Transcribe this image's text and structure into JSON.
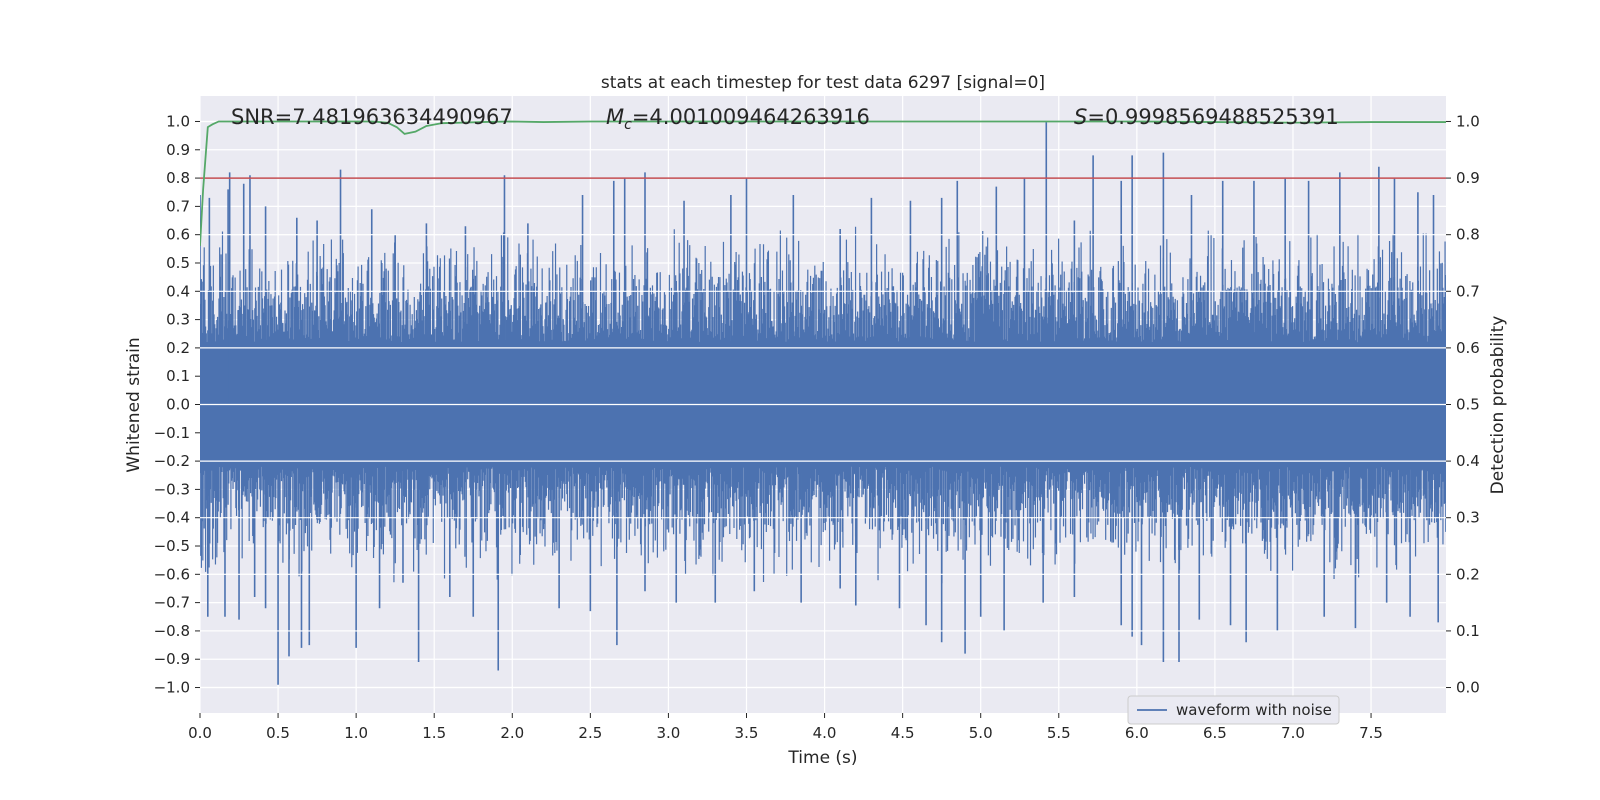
{
  "chart_data": {
    "type": "line",
    "title": "stats at each timestep for test data 6297 [signal=0]",
    "xlabel": "Time (s)",
    "ylabel_left": "Whitened strain",
    "ylabel_right": "Detection probability",
    "xlim": [
      0,
      7.98
    ],
    "ylim_left": [
      -1.09,
      1.09
    ],
    "ylim_right": [
      -0.045,
      1.045
    ],
    "x_ticks": [
      "0.0",
      "0.5",
      "1.0",
      "1.5",
      "2.0",
      "2.5",
      "3.0",
      "3.5",
      "4.0",
      "4.5",
      "5.0",
      "5.5",
      "6.0",
      "6.5",
      "7.0",
      "7.5"
    ],
    "y_left_ticks": [
      "1.0",
      "0.9",
      "0.8",
      "0.7",
      "0.6",
      "0.5",
      "0.4",
      "0.3",
      "0.2",
      "0.1",
      "0.0",
      "−0.1",
      "−0.2",
      "−0.3",
      "−0.4",
      "−0.5",
      "−0.6",
      "−0.7",
      "−0.8",
      "−0.9",
      "−1.0"
    ],
    "y_right_ticks": [
      "1.0",
      "0.9",
      "0.8",
      "0.7",
      "0.6",
      "0.5",
      "0.4",
      "0.3",
      "0.2",
      "0.1",
      "0.0"
    ],
    "grid": true,
    "legend_position": "lower-right",
    "stats": {
      "snr_text": "SNR=7.481963634490967",
      "mc_symbol": "M",
      "mc_subscript": "c",
      "mc_value": "=4.001009464263916",
      "s_symbol": "S",
      "s_value": "=0.9998569488525391"
    },
    "threshold": {
      "value": 0.9,
      "axis": "right",
      "color": "#c44e52"
    },
    "detection_probability": {
      "color": "#55a868",
      "x": [
        0,
        0.02,
        0.05,
        0.08,
        0.12,
        0.2,
        0.4,
        0.8,
        1.0,
        1.1,
        1.2,
        1.26,
        1.31,
        1.38,
        1.45,
        1.55,
        1.8,
        2.0,
        2.2,
        2.5,
        3.0,
        3.5,
        4.0,
        5.0,
        6.0,
        6.5,
        7.0,
        7.5,
        7.98
      ],
      "y": [
        0.78,
        0.88,
        0.99,
        0.995,
        1.0,
        1.0,
        1.0,
        1.0,
        1.0,
        1.0,
        0.998,
        0.99,
        0.978,
        0.982,
        0.992,
        0.997,
        0.999,
        1.0,
        0.999,
        1.0,
        1.0,
        1.0,
        1.0,
        1.0,
        1.0,
        0.999,
        0.998,
        0.999,
        0.999
      ]
    },
    "waveform": {
      "name": "waveform with noise",
      "color": "#4c72b0",
      "core_amplitude": 0.2,
      "peaks_positive": [
        [
          0.0,
          0.74
        ],
        [
          0.06,
          0.73
        ],
        [
          0.18,
          0.76
        ],
        [
          0.19,
          0.82
        ],
        [
          0.28,
          0.78
        ],
        [
          0.32,
          0.81
        ],
        [
          0.42,
          0.7
        ],
        [
          0.62,
          0.66
        ],
        [
          0.75,
          0.65
        ],
        [
          0.9,
          0.83
        ],
        [
          1.1,
          0.69
        ],
        [
          1.25,
          0.6
        ],
        [
          1.45,
          0.64
        ],
        [
          1.7,
          0.63
        ],
        [
          1.95,
          0.81
        ],
        [
          2.1,
          0.64
        ],
        [
          2.45,
          0.74
        ],
        [
          2.65,
          0.79
        ],
        [
          2.72,
          0.8
        ],
        [
          2.85,
          0.82
        ],
        [
          3.1,
          0.72
        ],
        [
          3.4,
          0.74
        ],
        [
          3.5,
          0.8
        ],
        [
          3.8,
          0.74
        ],
        [
          4.1,
          0.62
        ],
        [
          4.3,
          0.73
        ],
        [
          4.55,
          0.72
        ],
        [
          4.75,
          0.73
        ],
        [
          4.85,
          0.79
        ],
        [
          5.1,
          0.77
        ],
        [
          5.28,
          0.8
        ],
        [
          5.42,
          1.0
        ],
        [
          5.6,
          0.65
        ],
        [
          5.72,
          0.88
        ],
        [
          5.9,
          0.79
        ],
        [
          5.97,
          0.88
        ],
        [
          6.17,
          0.89
        ],
        [
          6.35,
          0.74
        ],
        [
          6.55,
          0.79
        ],
        [
          6.75,
          0.79
        ],
        [
          6.95,
          0.8
        ],
        [
          7.1,
          0.79
        ],
        [
          7.3,
          0.82
        ],
        [
          7.55,
          0.84
        ],
        [
          7.65,
          0.8
        ],
        [
          7.8,
          0.75
        ],
        [
          7.9,
          0.74
        ]
      ],
      "peaks_negative": [
        [
          0.05,
          -0.75
        ],
        [
          0.16,
          -0.75
        ],
        [
          0.25,
          -0.76
        ],
        [
          0.35,
          -0.68
        ],
        [
          0.42,
          -0.72
        ],
        [
          0.5,
          -0.99
        ],
        [
          0.57,
          -0.89
        ],
        [
          0.65,
          -0.86
        ],
        [
          0.7,
          -0.85
        ],
        [
          1.0,
          -0.86
        ],
        [
          1.15,
          -0.72
        ],
        [
          1.3,
          -0.63
        ],
        [
          1.4,
          -0.91
        ],
        [
          1.6,
          -0.68
        ],
        [
          1.75,
          -0.75
        ],
        [
          1.91,
          -0.94
        ],
        [
          2.3,
          -0.72
        ],
        [
          2.5,
          -0.73
        ],
        [
          2.67,
          -0.85
        ],
        [
          2.85,
          -0.66
        ],
        [
          3.05,
          -0.7
        ],
        [
          3.3,
          -0.7
        ],
        [
          3.55,
          -0.66
        ],
        [
          3.85,
          -0.7
        ],
        [
          4.1,
          -0.65
        ],
        [
          4.2,
          -0.71
        ],
        [
          4.48,
          -0.72
        ],
        [
          4.65,
          -0.78
        ],
        [
          4.75,
          -0.84
        ],
        [
          4.9,
          -0.88
        ],
        [
          5.0,
          -0.75
        ],
        [
          5.15,
          -0.8
        ],
        [
          5.4,
          -0.7
        ],
        [
          5.6,
          -0.68
        ],
        [
          5.9,
          -0.78
        ],
        [
          5.97,
          -0.82
        ],
        [
          6.03,
          -0.85
        ],
        [
          6.17,
          -0.91
        ],
        [
          6.27,
          -0.91
        ],
        [
          6.4,
          -0.76
        ],
        [
          6.6,
          -0.78
        ],
        [
          6.7,
          -0.84
        ],
        [
          6.9,
          -0.8
        ],
        [
          7.2,
          -0.75
        ],
        [
          7.4,
          -0.79
        ],
        [
          7.6,
          -0.7
        ],
        [
          7.75,
          -0.75
        ],
        [
          7.93,
          -0.77
        ]
      ]
    }
  }
}
